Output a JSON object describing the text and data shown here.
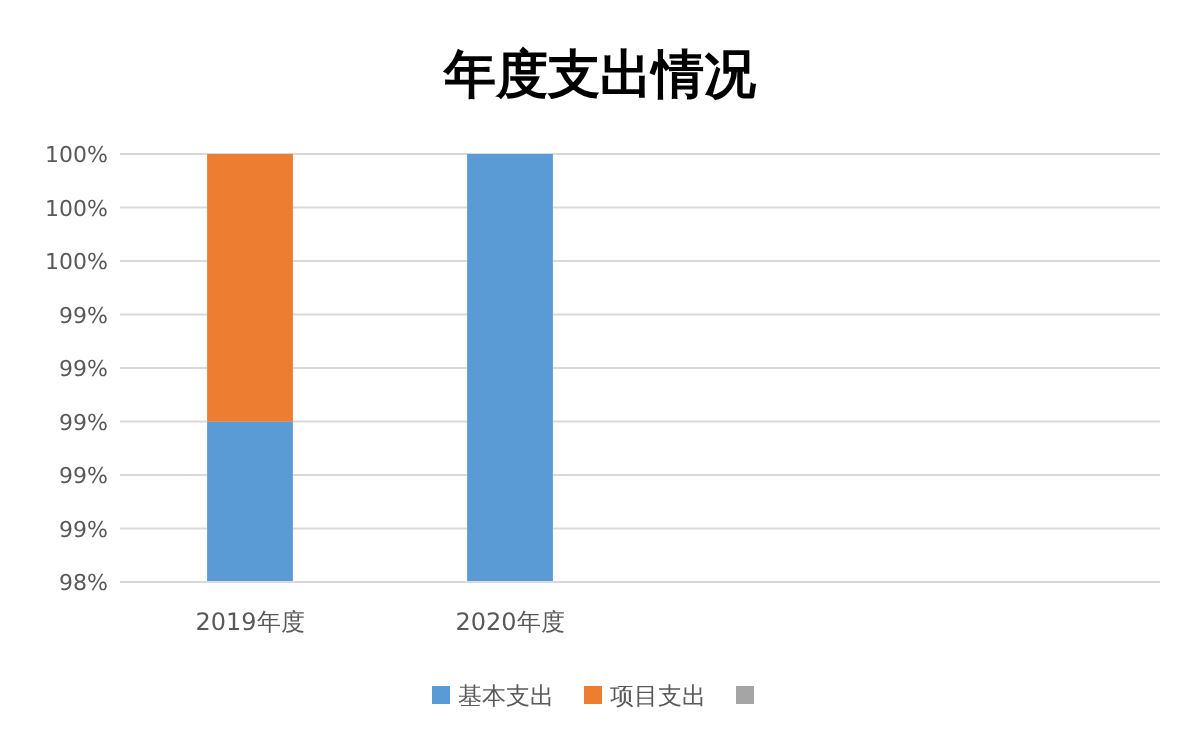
{
  "chart_data": {
    "type": "bar",
    "title": "年度支出情况",
    "categories": [
      "2019年度",
      "2020年度",
      null,
      null
    ],
    "series": [
      {
        "name": "基本支出",
        "color": "#5b9bd5",
        "values": [
          99.0,
          100,
          null,
          null
        ]
      },
      {
        "name": "项目支出",
        "color": "#ed7d31",
        "values": [
          1.0,
          null,
          null,
          null
        ],
        "base": [
          99.0,
          null,
          null,
          null
        ]
      },
      {
        "color": "#a5a5a5",
        "values": [
          null,
          null,
          null,
          null
        ]
      }
    ],
    "ylim": [
      98.4,
      100
    ],
    "yticks": [
      {
        "value": 98.4,
        "label": "98%"
      },
      {
        "value": 98.6,
        "label": "99%"
      },
      {
        "value": 98.8,
        "label": "99%"
      },
      {
        "value": 99.0,
        "label": "99%"
      },
      {
        "value": 99.2,
        "label": "99%"
      },
      {
        "value": 99.4,
        "label": "99%"
      },
      {
        "value": 99.6,
        "label": "100%"
      },
      {
        "value": 99.8,
        "label": "100%"
      },
      {
        "value": 100,
        "label": "100%"
      }
    ],
    "grid": "y",
    "legend": "bottom"
  }
}
